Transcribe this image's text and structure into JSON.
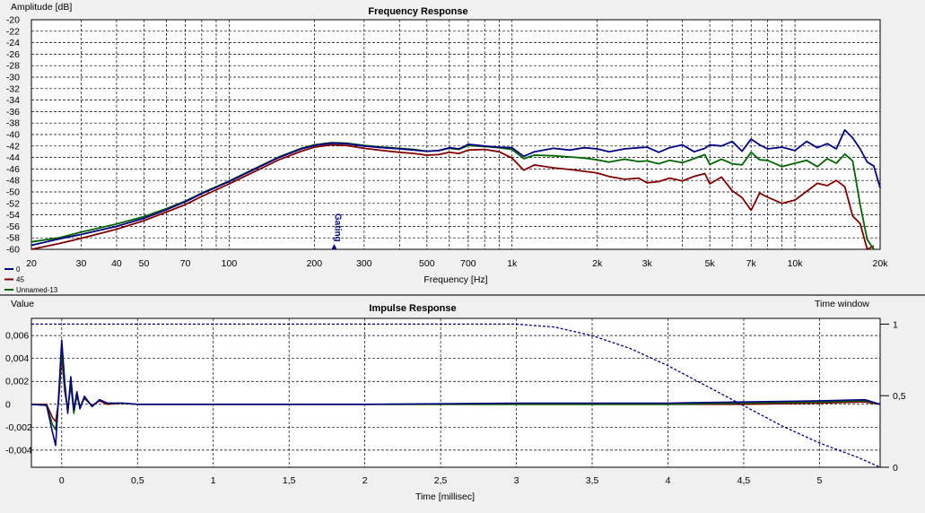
{
  "colors": {
    "background": "#f0f0f0",
    "plot_background": "#ffffff",
    "series_0": "#000080",
    "series_45": "#800000",
    "series_unnamed13": "#006400",
    "time_window": "#000080"
  },
  "chart_data": [
    {
      "type": "line",
      "title": "Frequency Response",
      "ylabel": "Amplitude [dB]",
      "xlabel": "Frequency [Hz]",
      "xscale": "log",
      "xlim": [
        20,
        20000
      ],
      "ylim": [
        -60,
        -20
      ],
      "grid": true,
      "legend_position": "bottom-left",
      "ytick_labels": [
        "-20",
        "-22",
        "-24",
        "-26",
        "-28",
        "-30",
        "-32",
        "-34",
        "-36",
        "-38",
        "-40",
        "-42",
        "-44",
        "-46",
        "-48",
        "-50",
        "-52",
        "-54",
        "-56",
        "-58",
        "-60"
      ],
      "xtick_labels": [
        {
          "v": 20,
          "t": "20"
        },
        {
          "v": 30,
          "t": "30"
        },
        {
          "v": 40,
          "t": "40"
        },
        {
          "v": 50,
          "t": "50"
        },
        {
          "v": 70,
          "t": "70"
        },
        {
          "v": 100,
          "t": "100"
        },
        {
          "v": 200,
          "t": "200"
        },
        {
          "v": 300,
          "t": "300"
        },
        {
          "v": 500,
          "t": "500"
        },
        {
          "v": 700,
          "t": "700"
        },
        {
          "v": 1000,
          "t": "1k"
        },
        {
          "v": 2000,
          "t": "2k"
        },
        {
          "v": 3000,
          "t": "3k"
        },
        {
          "v": 5000,
          "t": "5k"
        },
        {
          "v": 7000,
          "t": "7k"
        },
        {
          "v": 10000,
          "t": "10k"
        },
        {
          "v": 20000,
          "t": "20k"
        }
      ],
      "annotation": {
        "text": "Gating",
        "x": 230
      },
      "series": [
        {
          "name": "0",
          "color": "#000080",
          "x": [
            20,
            25,
            30,
            40,
            50,
            60,
            70,
            80,
            100,
            120,
            150,
            180,
            200,
            230,
            260,
            300,
            350,
            400,
            450,
            500,
            550,
            600,
            650,
            700,
            800,
            900,
            1000,
            1100,
            1200,
            1400,
            1600,
            1800,
            2000,
            2200,
            2500,
            2800,
            3000,
            3300,
            3600,
            4000,
            4400,
            4800,
            5000,
            5500,
            6000,
            6500,
            7000,
            7500,
            8000,
            9000,
            10000,
            11000,
            12000,
            13000,
            14000,
            15000,
            16000,
            17000,
            18000,
            19000,
            20000
          ],
          "y": [
            -59.3,
            -58.2,
            -57.4,
            -56.0,
            -54.6,
            -53.1,
            -51.7,
            -50.3,
            -48.2,
            -46.3,
            -44.0,
            -42.5,
            -41.9,
            -41.5,
            -41.6,
            -42.0,
            -42.3,
            -42.5,
            -42.7,
            -42.9,
            -42.8,
            -42.3,
            -42.5,
            -41.7,
            -42.0,
            -42.2,
            -42.3,
            -43.8,
            -43.0,
            -42.4,
            -42.7,
            -42.3,
            -42.5,
            -43.0,
            -42.5,
            -42.3,
            -42.2,
            -43.1,
            -42.3,
            -41.8,
            -43.0,
            -42.4,
            -41.8,
            -42.0,
            -41.2,
            -42.9,
            -40.8,
            -41.8,
            -42.5,
            -42.2,
            -42.8,
            -41.2,
            -42.3,
            -41.6,
            -42.5,
            -39.2,
            -40.6,
            -42.5,
            -44.8,
            -45.5,
            -49.3
          ]
        },
        {
          "name": "45",
          "color": "#800000",
          "x": [
            20,
            25,
            30,
            40,
            50,
            60,
            70,
            80,
            100,
            120,
            150,
            180,
            200,
            230,
            260,
            300,
            350,
            400,
            450,
            500,
            550,
            600,
            650,
            700,
            800,
            900,
            1000,
            1100,
            1200,
            1400,
            1600,
            1800,
            2000,
            2200,
            2500,
            2800,
            3000,
            3300,
            3600,
            4000,
            4400,
            4800,
            5000,
            5500,
            6000,
            6500,
            7000,
            7500,
            8000,
            9000,
            10000,
            11000,
            12000,
            13000,
            14000,
            15000,
            16000,
            17000,
            18000,
            19000
          ],
          "y": [
            -60.0,
            -59.0,
            -58.1,
            -56.5,
            -55.0,
            -53.5,
            -52.2,
            -50.8,
            -48.6,
            -46.7,
            -44.4,
            -42.9,
            -42.2,
            -41.8,
            -41.9,
            -42.4,
            -42.8,
            -43.1,
            -43.3,
            -43.6,
            -43.5,
            -43.1,
            -43.3,
            -42.7,
            -42.6,
            -43.0,
            -44.1,
            -46.2,
            -45.3,
            -45.8,
            -46.1,
            -46.4,
            -46.7,
            -47.3,
            -47.8,
            -47.6,
            -48.4,
            -48.2,
            -47.6,
            -48.1,
            -47.3,
            -46.8,
            -48.6,
            -47.4,
            -49.8,
            -51.0,
            -53.2,
            -50.2,
            -50.9,
            -52.0,
            -51.4,
            -49.9,
            -48.5,
            -48.9,
            -48.0,
            -49.1,
            -54.2,
            -55.5,
            -60.0,
            -59.4
          ]
        },
        {
          "name": "Unnamed-13",
          "color": "#006400",
          "x": [
            20,
            25,
            30,
            40,
            50,
            60,
            70,
            80,
            100,
            120,
            150,
            180,
            200,
            230,
            260,
            300,
            350,
            400,
            450,
            500,
            550,
            600,
            650,
            700,
            800,
            900,
            1000,
            1100,
            1200,
            1400,
            1600,
            1800,
            2000,
            2200,
            2500,
            2800,
            3000,
            3300,
            3600,
            4000,
            4400,
            4800,
            5000,
            5500,
            6000,
            6500,
            7000,
            7500,
            8000,
            9000,
            10000,
            11000,
            12000,
            13000,
            14000,
            15000,
            16000,
            17000,
            18000,
            19000
          ],
          "y": [
            -58.7,
            -58.0,
            -57.0,
            -55.6,
            -54.3,
            -52.9,
            -51.6,
            -50.2,
            -48.1,
            -46.2,
            -43.9,
            -42.4,
            -41.8,
            -41.4,
            -41.5,
            -41.9,
            -42.2,
            -42.4,
            -42.6,
            -42.9,
            -42.8,
            -42.4,
            -42.6,
            -41.9,
            -42.1,
            -42.3,
            -42.6,
            -44.2,
            -43.6,
            -43.7,
            -43.9,
            -44.1,
            -44.4,
            -44.8,
            -44.3,
            -44.7,
            -44.6,
            -45.1,
            -44.5,
            -44.9,
            -44.2,
            -43.5,
            -45.2,
            -44.3,
            -45.1,
            -45.3,
            -43.1,
            -44.4,
            -44.5,
            -45.6,
            -45.0,
            -44.5,
            -45.6,
            -44.2,
            -45.0,
            -43.4,
            -44.6,
            -52.2,
            -58.3,
            -60.0
          ]
        }
      ]
    },
    {
      "type": "line",
      "title": "Impulse Response",
      "ylabel": "Value",
      "xlabel": "Time [millisec]",
      "y2label": "Time window",
      "xlim": [
        -0.2,
        5.4
      ],
      "ylim": [
        -0.0055,
        0.0075
      ],
      "y2lim": [
        0,
        1
      ],
      "grid": true,
      "xtick_labels": [
        {
          "v": 0,
          "t": "0"
        },
        {
          "v": 0.5,
          "t": "0,5"
        },
        {
          "v": 1,
          "t": "1"
        },
        {
          "v": 1.5,
          "t": "1,5"
        },
        {
          "v": 2,
          "t": "2"
        },
        {
          "v": 2.5,
          "t": "2,5"
        },
        {
          "v": 3,
          "t": "3"
        },
        {
          "v": 3.5,
          "t": "3,5"
        },
        {
          "v": 4,
          "t": "4"
        },
        {
          "v": 4.5,
          "t": "4,5"
        },
        {
          "v": 5,
          "t": "5"
        }
      ],
      "ytick_labels": [
        {
          "v": 0.006,
          "t": "0,006"
        },
        {
          "v": 0.004,
          "t": "0,004"
        },
        {
          "v": 0.002,
          "t": "0,002"
        },
        {
          "v": 0,
          "t": "0"
        },
        {
          "v": -0.002,
          "t": "-0,002"
        },
        {
          "v": -0.004,
          "t": "-0,004"
        }
      ],
      "y2tick_labels": [
        {
          "v": 1,
          "t": "1"
        },
        {
          "v": 0.5,
          "t": "0,5"
        },
        {
          "v": 0,
          "t": "0"
        }
      ],
      "series": [
        {
          "name": "45",
          "color": "#800000",
          "x": [
            -0.2,
            -0.1,
            -0.06,
            -0.04,
            -0.02,
            0,
            0.02,
            0.04,
            0.06,
            0.08,
            0.1,
            0.12,
            0.15,
            0.2,
            0.25,
            0.3,
            0.4,
            0.5,
            0.7,
            1.0,
            1.5,
            2.0,
            3.0,
            4.0,
            4.5,
            5.0,
            5.3,
            5.4
          ],
          "y": [
            0,
            0.0,
            -0.0012,
            -0.0015,
            0.0003,
            0.0042,
            0.0011,
            -0.0004,
            0.0016,
            -0.0006,
            0.0007,
            -0.0002,
            0.0005,
            -0.0001,
            0.0003,
            0.0,
            0.0001,
            0.0,
            0.0,
            0.0,
            0.0,
            0.0,
            0.0,
            0.0,
            0.0,
            0.0001,
            0.0002,
            0.0
          ]
        },
        {
          "name": "Unnamed-13",
          "color": "#006400",
          "x": [
            -0.2,
            -0.1,
            -0.06,
            -0.04,
            -0.02,
            0,
            0.02,
            0.04,
            0.06,
            0.08,
            0.1,
            0.12,
            0.15,
            0.2,
            0.25,
            0.3,
            0.4,
            0.5,
            0.7,
            1.0,
            1.5,
            2.0,
            3.0,
            4.0,
            4.5,
            5.0,
            5.3,
            5.4
          ],
          "y": [
            0,
            -0.0001,
            -0.0018,
            -0.0022,
            0.0004,
            0.0048,
            0.0014,
            -0.0006,
            0.0019,
            -0.0008,
            0.0009,
            -0.0003,
            0.0006,
            -0.0002,
            0.0004,
            0.0001,
            0.0001,
            0.0,
            0.0,
            0.0,
            0.0,
            0.0,
            0.0,
            0.0,
            0.0001,
            0.0002,
            0.0003,
            0.0
          ]
        },
        {
          "name": "0",
          "color": "#000080",
          "x": [
            -0.2,
            -0.1,
            -0.06,
            -0.04,
            -0.02,
            0,
            0.02,
            0.04,
            0.06,
            0.08,
            0.1,
            0.12,
            0.15,
            0.2,
            0.25,
            0.3,
            0.4,
            0.5,
            0.7,
            1.0,
            1.5,
            2.0,
            3.0,
            4.0,
            4.5,
            5.0,
            5.3,
            5.4
          ],
          "y": [
            0,
            -0.0001,
            -0.0025,
            -0.0036,
            0.0008,
            0.0056,
            0.0019,
            -0.0008,
            0.0024,
            -0.0005,
            0.0011,
            -0.0004,
            0.0007,
            -0.0002,
            0.0004,
            0.0001,
            0.0001,
            0.0,
            0.0,
            0.0,
            0.0,
            0.0,
            0.0001,
            0.0001,
            0.0002,
            0.0003,
            0.0004,
            0.0
          ]
        },
        {
          "name": "Time window",
          "color": "#000080",
          "dashed": true,
          "axis": "y2",
          "x": [
            -0.2,
            3.0,
            3.25,
            3.5,
            3.75,
            4.0,
            4.25,
            4.5,
            4.75,
            5.0,
            5.25,
            5.4
          ],
          "y": [
            1.0,
            1.0,
            0.98,
            0.92,
            0.83,
            0.71,
            0.57,
            0.43,
            0.29,
            0.17,
            0.07,
            0.0
          ]
        }
      ]
    }
  ]
}
